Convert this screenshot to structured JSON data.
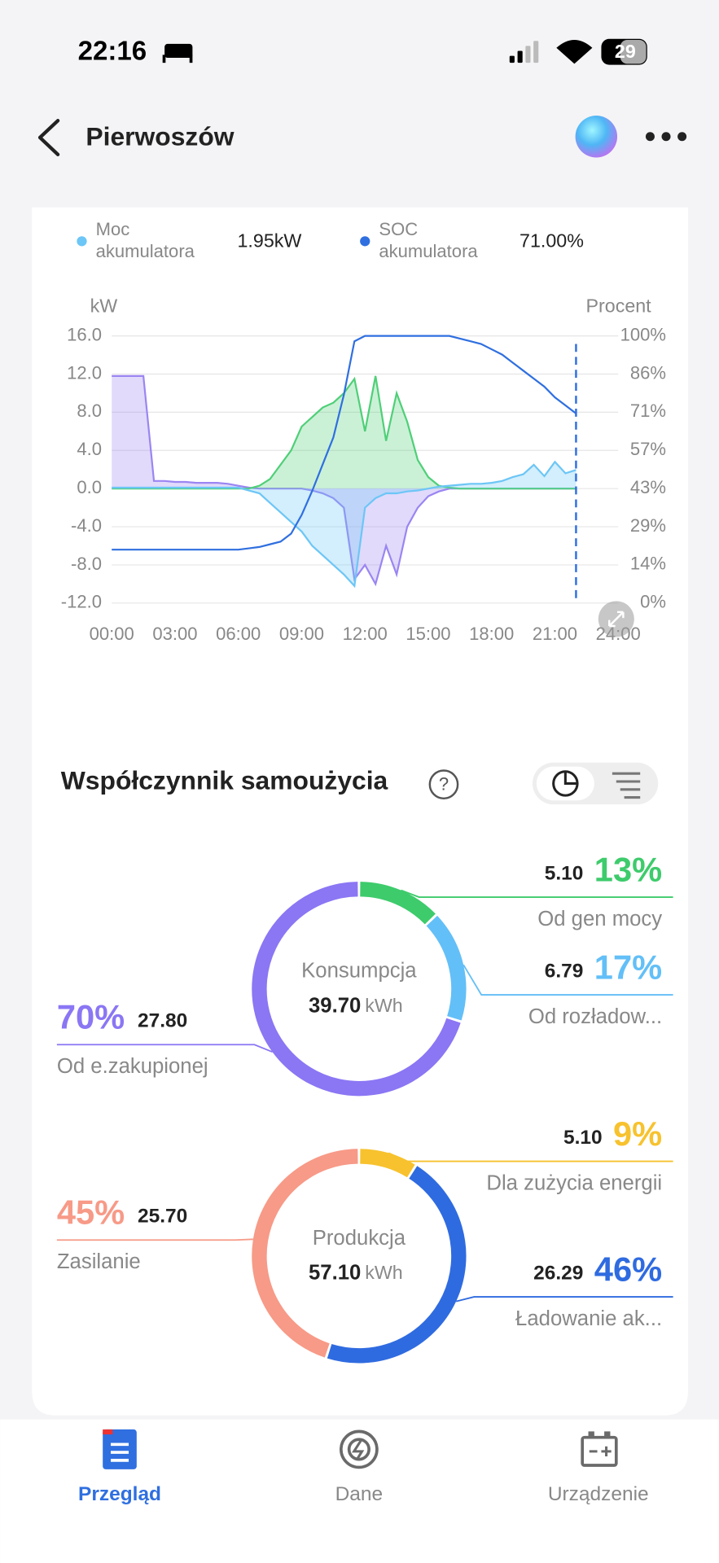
{
  "status_bar": {
    "time": "22:16",
    "battery": "29"
  },
  "header": {
    "title": "Pierwoszów"
  },
  "chart_data": {
    "type": "line",
    "y_label": "kW",
    "y2_label": "Procent",
    "x": [
      0,
      0.5,
      1,
      1.5,
      2,
      2.5,
      3,
      3.5,
      4,
      4.5,
      5,
      5.5,
      6,
      6.5,
      7,
      7.5,
      8,
      8.5,
      9,
      9.5,
      10,
      10.5,
      11,
      11.5,
      12,
      12.5,
      13,
      13.5,
      14,
      14.5,
      15,
      15.5,
      16,
      16.5,
      17,
      17.5,
      18,
      18.5,
      19,
      19.5,
      20,
      20.5,
      21,
      21.5,
      22
    ],
    "xlim": [
      0,
      24
    ],
    "xticks": [
      {
        "value": 0,
        "label": "00:00"
      },
      {
        "value": 3,
        "label": "03:00"
      },
      {
        "value": 6,
        "label": "06:00"
      },
      {
        "value": 9,
        "label": "09:00"
      },
      {
        "value": 12,
        "label": "12:00"
      },
      {
        "value": 15,
        "label": "15:00"
      },
      {
        "value": 18,
        "label": "18:00"
      },
      {
        "value": 21,
        "label": "21:00"
      },
      {
        "value": 24,
        "label": "24:00"
      }
    ],
    "ylim": [
      -12,
      16
    ],
    "yticks": [
      {
        "value": -12,
        "label": "-12.0"
      },
      {
        "value": -8,
        "label": "-8.0"
      },
      {
        "value": -4,
        "label": "-4.0"
      },
      {
        "value": 0,
        "label": "0.0"
      },
      {
        "value": 4,
        "label": "4.0"
      },
      {
        "value": 8,
        "label": "8.0"
      },
      {
        "value": 12,
        "label": "12.0"
      },
      {
        "value": 16,
        "label": "16.0"
      }
    ],
    "y2lim": [
      0,
      100
    ],
    "y2ticks": [
      {
        "value": 0,
        "label": "0%"
      },
      {
        "value": 14.29,
        "label": "14%"
      },
      {
        "value": 28.57,
        "label": "29%"
      },
      {
        "value": 42.86,
        "label": "43%"
      },
      {
        "value": 57.14,
        "label": "57%"
      },
      {
        "value": 71.43,
        "label": "71%"
      },
      {
        "value": 85.71,
        "label": "86%"
      },
      {
        "value": 100,
        "label": "100%"
      }
    ],
    "grid": true,
    "series": [
      {
        "color": "#9b85f2",
        "fill": true,
        "values": [
          11.8,
          11.8,
          11.8,
          11.8,
          0.8,
          0.8,
          0.7,
          0.7,
          0.6,
          0.6,
          0.6,
          0.5,
          0.3,
          0.1,
          0,
          0,
          0,
          0,
          0,
          -0.2,
          -0.5,
          -1,
          -2,
          -9.5,
          -8,
          -10,
          -6,
          -9,
          -4,
          -2,
          -0.8,
          -0.3,
          0,
          0,
          0,
          0,
          0,
          0,
          0,
          0,
          0,
          0,
          0,
          0,
          0
        ]
      },
      {
        "color": "#4fcf78",
        "fill": true,
        "values": [
          0,
          0,
          0,
          0,
          0,
          0,
          0,
          0,
          0,
          0,
          0,
          0,
          0,
          0,
          0.3,
          1,
          2.5,
          4,
          6.5,
          7.5,
          8.5,
          9,
          10,
          11.5,
          6,
          11.8,
          5,
          10,
          7,
          3,
          1.2,
          0.3,
          0.1,
          0,
          0,
          0,
          0,
          0,
          0,
          0,
          0,
          0,
          0,
          0,
          0
        ]
      },
      {
        "name": "Moc akumulatora",
        "current": "1.95kW",
        "color": "#6cc6f6",
        "fill": true,
        "values": [
          0.1,
          0.1,
          0.1,
          0.1,
          0.1,
          0.1,
          0.1,
          0.1,
          0.1,
          0.1,
          0.1,
          0.1,
          0.1,
          -0.2,
          -0.5,
          -1.5,
          -2.5,
          -3.5,
          -4.5,
          -6,
          -7,
          -8,
          -9,
          -10.2,
          -2,
          -1,
          -0.5,
          -0.5,
          -0.3,
          -0.2,
          0,
          0.2,
          0.3,
          0.4,
          0.5,
          0.5,
          0.6,
          0.8,
          1.2,
          1.5,
          2.5,
          1.3,
          2.8,
          1.6,
          1.95
        ]
      },
      {
        "name": "SOC akumulatora",
        "current": "71.00%",
        "color": "#2f6fe0",
        "axis": "y2",
        "fill": false,
        "values": [
          20,
          20,
          20,
          20,
          20,
          20,
          20,
          20,
          20,
          20,
          20,
          20,
          20,
          20.5,
          21,
          22,
          23,
          26,
          33,
          42,
          52,
          62,
          78,
          98,
          100,
          100,
          100,
          100,
          100,
          100,
          100,
          100,
          100,
          99,
          98,
          97,
          95,
          93,
          90,
          87,
          84,
          81,
          77,
          74,
          71
        ]
      }
    ]
  },
  "self_use": {
    "title": "Współczynnik samoużycia",
    "donuts": [
      {
        "center_label": "Konsumpcja",
        "total": "39.70",
        "unit": "kWh",
        "segments": [
          {
            "label": "Od gen mocy",
            "value": 5.1,
            "value_label": "5.10",
            "percent": "13%",
            "color": "#3ecb6c"
          },
          {
            "label": "Od rozładow...",
            "value": 6.79,
            "value_label": "6.79",
            "percent": "17%",
            "color": "#63bff7"
          },
          {
            "label": "Od e.zakupionej",
            "value": 27.8,
            "value_label": "27.80",
            "percent": "70%",
            "color": "#8b76f4"
          }
        ]
      },
      {
        "center_label": "Produkcja",
        "total": "57.10",
        "unit": "kWh",
        "segments": [
          {
            "label": "Dla zużycia energii",
            "value": 5.1,
            "value_label": "5.10",
            "percent": "9%",
            "color": "#f7c22e"
          },
          {
            "label": "Ładowanie ak...",
            "value": 26.29,
            "value_label": "26.29",
            "percent": "46%",
            "color": "#2f6be0"
          },
          {
            "label": "Zasilanie",
            "value": 25.7,
            "value_label": "25.70",
            "percent": "45%",
            "color": "#f79a87"
          }
        ]
      }
    ]
  },
  "nav": {
    "items": [
      {
        "label": "Przegląd",
        "active": true
      },
      {
        "label": "Dane",
        "active": false
      },
      {
        "label": "Urządzenie",
        "active": false
      }
    ]
  }
}
